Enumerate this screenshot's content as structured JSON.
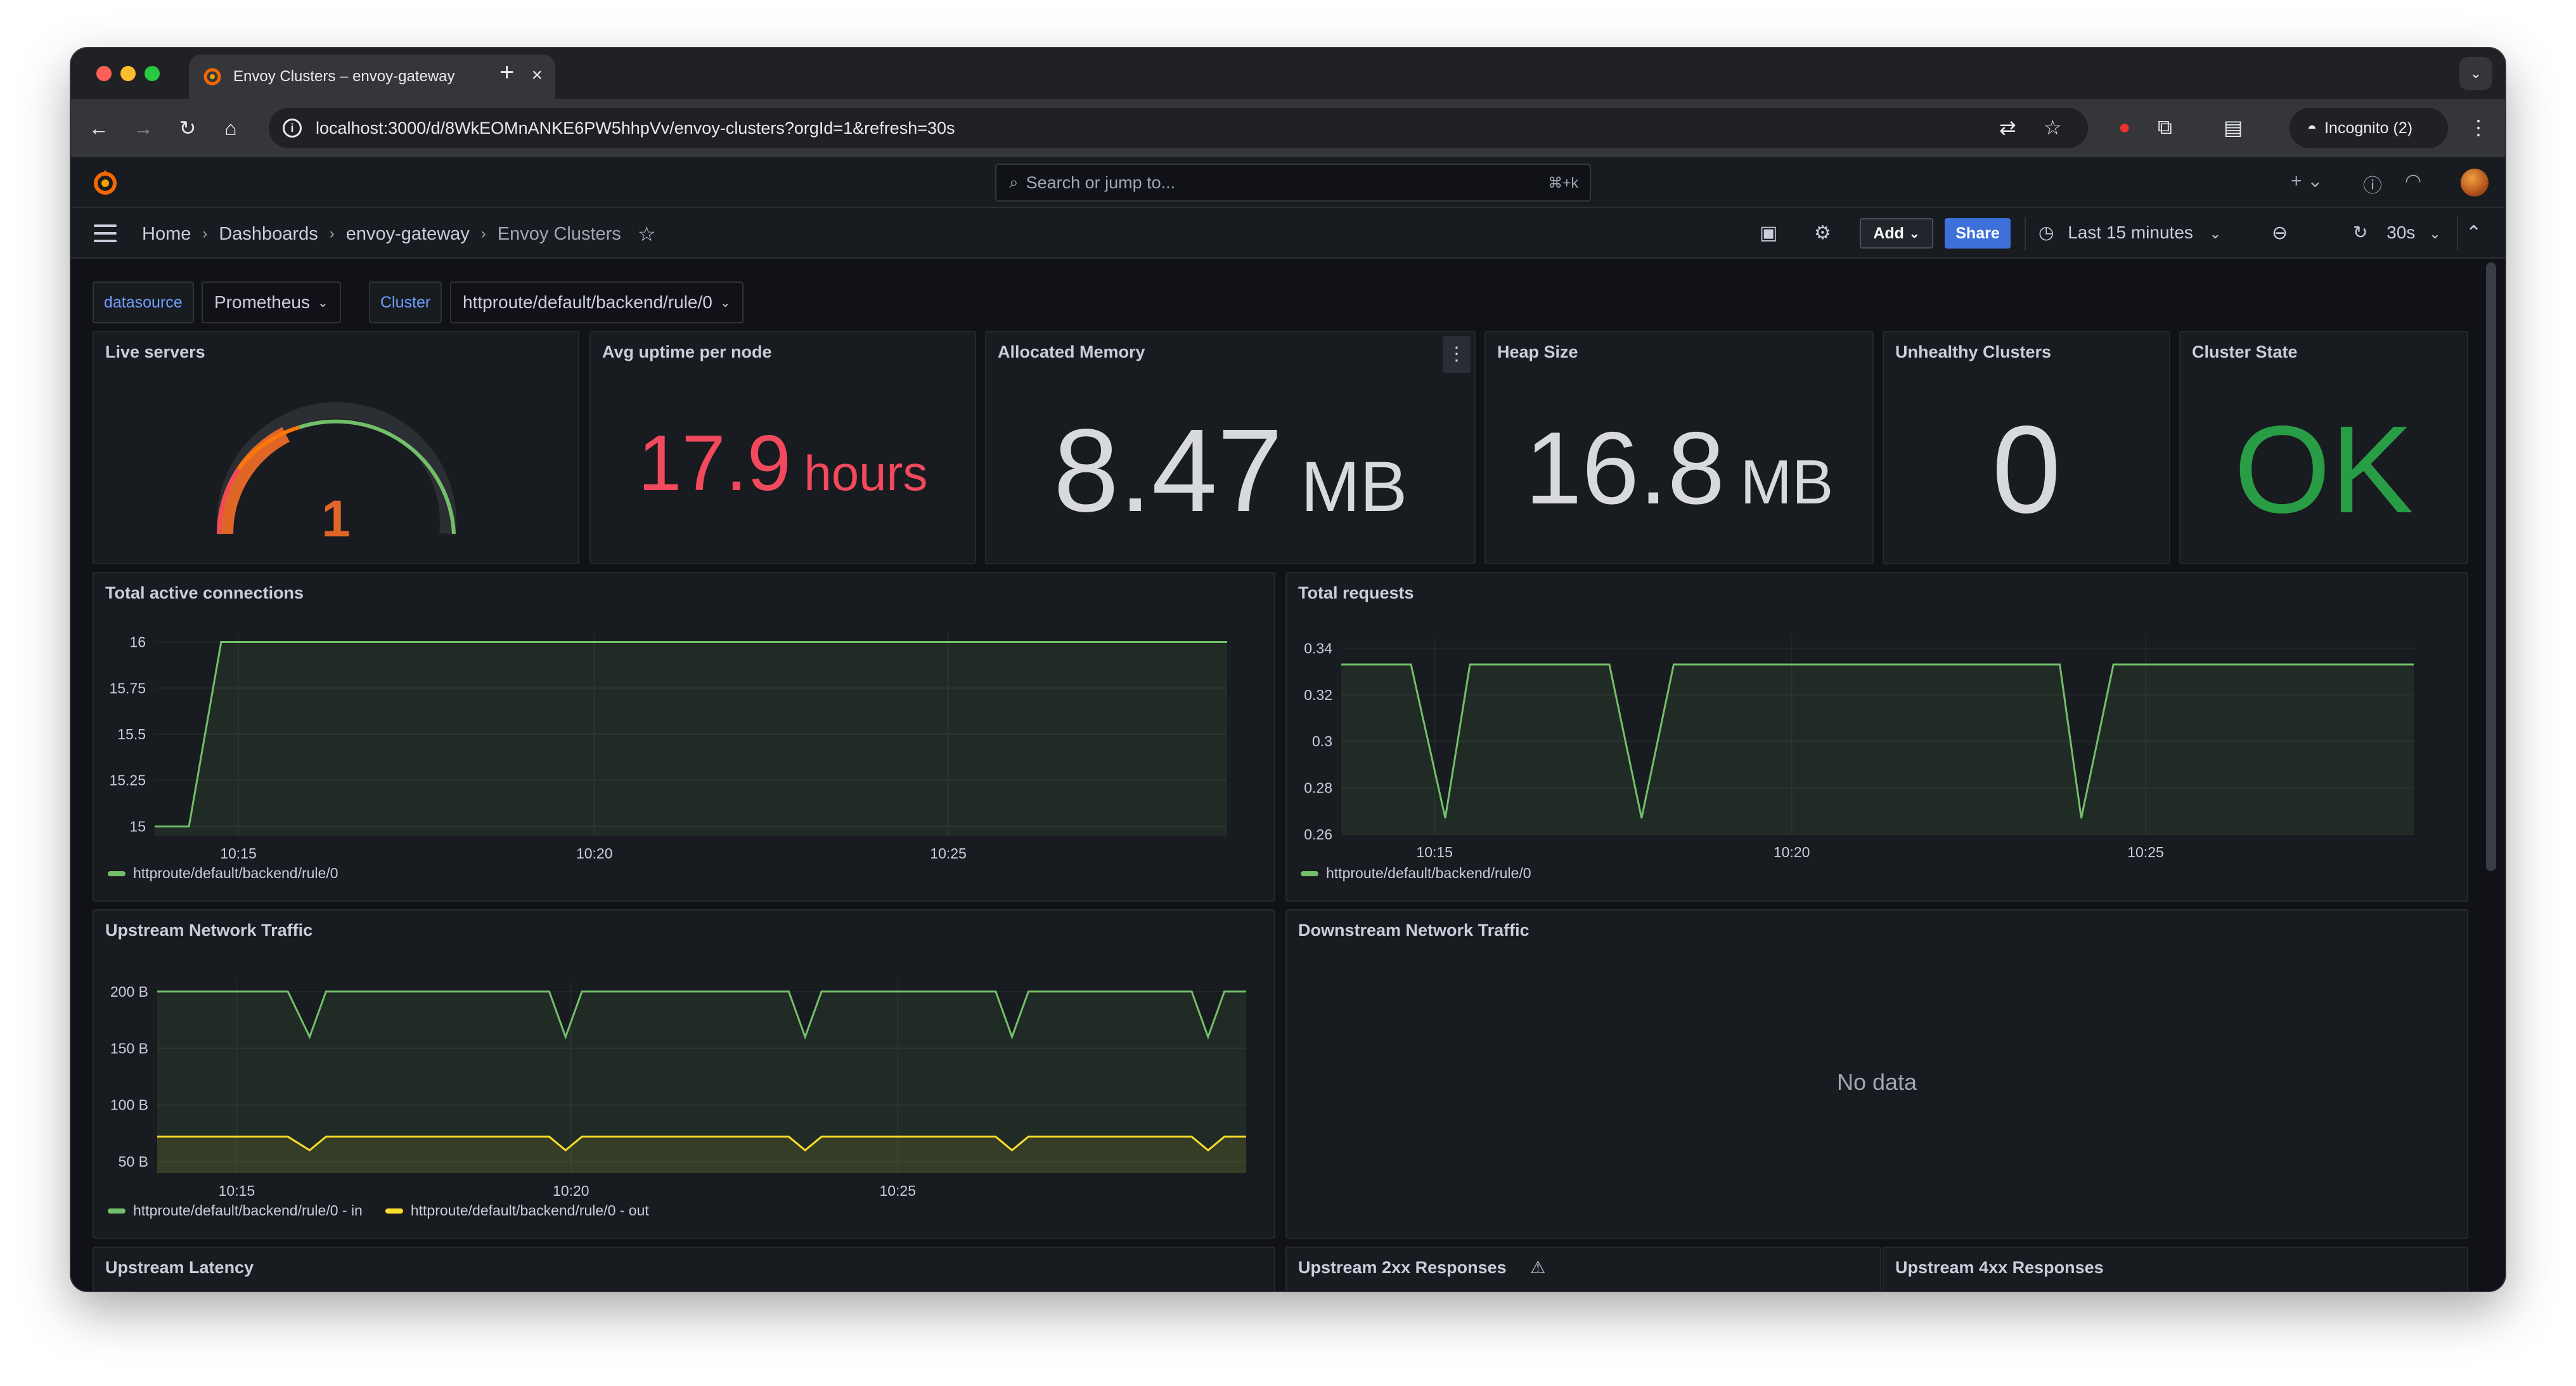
{
  "browser": {
    "tab_title": "Envoy Clusters – envoy-gateway",
    "url": "localhost:3000/d/8WkEOMnANKE6PW5hhpVv/envoy-clusters?orgId=1&refresh=30s",
    "incognito_label": "Incognito (2)"
  },
  "grafana": {
    "search_placeholder": "Search or jump to...",
    "search_shortcut": "⌘+k",
    "breadcrumbs": [
      "Home",
      "Dashboards",
      "envoy-gateway",
      "Envoy Clusters"
    ],
    "add_label": "Add",
    "share_label": "Share",
    "time_range": "Last 15 minutes",
    "refresh_interval": "30s"
  },
  "variables": {
    "datasource_label": "datasource",
    "datasource_value": "Prometheus",
    "cluster_label": "Cluster",
    "cluster_value": "httproute/default/backend/rule/0"
  },
  "stats": {
    "live_servers": {
      "title": "Live servers",
      "value": "1",
      "gauge_fraction": 0.35
    },
    "avg_uptime": {
      "title": "Avg uptime per node",
      "value": "17.9",
      "unit": "hours"
    },
    "allocated_memory": {
      "title": "Allocated Memory",
      "value": "8.47",
      "unit": "MB"
    },
    "heap_size": {
      "title": "Heap Size",
      "value": "16.8",
      "unit": "MB"
    },
    "unhealthy_clusters": {
      "title": "Unhealthy Clusters",
      "value": "0"
    },
    "cluster_state": {
      "title": "Cluster State",
      "value": "OK"
    }
  },
  "panels": {
    "active_connections_title": "Total active connections",
    "total_requests_title": "Total requests",
    "upstream_traffic_title": "Upstream Network Traffic",
    "downstream_traffic_title": "Downstream Network Traffic",
    "no_data": "No data",
    "upstream_latency_title": "Upstream Latency",
    "upstream_2xx_title": "Upstream 2xx Responses",
    "upstream_4xx_title": "Upstream 4xx Responses"
  },
  "colors": {
    "green": "#73bf69",
    "yellow": "#fade2a",
    "red": "#f2495c",
    "orange": "#ff780a",
    "ok_green": "#299c46",
    "share_blue": "#3d71d9"
  },
  "chart_data": [
    {
      "type": "line",
      "title": "Total active connections",
      "x_ticks": [
        "10:15",
        "10:20",
        "10:25"
      ],
      "y_ticks": [
        "15",
        "15.25",
        "15.5",
        "15.75",
        "16"
      ],
      "ylim": [
        14.95,
        16.05
      ],
      "series": [
        {
          "name": "httproute/default/backend/rule/0",
          "color": "#73bf69",
          "x": [
            0.0,
            0.032,
            0.062,
            1.0
          ],
          "values": [
            15,
            15,
            16,
            16
          ]
        }
      ]
    },
    {
      "type": "line",
      "title": "Total requests",
      "x_ticks": [
        "10:15",
        "10:20",
        "10:25"
      ],
      "y_ticks": [
        "0.26",
        "0.28",
        "0.3",
        "0.32",
        "0.34"
      ],
      "ylim": [
        0.26,
        0.345
      ],
      "series": [
        {
          "name": "httproute/default/backend/rule/0",
          "color": "#73bf69",
          "x": [
            0.0,
            0.065,
            0.097,
            0.12,
            0.25,
            0.28,
            0.31,
            0.42,
            0.67,
            0.69,
            0.72,
            1.0
          ],
          "values": [
            0.333,
            0.333,
            0.267,
            0.333,
            0.333,
            0.267,
            0.333,
            0.333,
            0.333,
            0.267,
            0.333,
            0.333
          ]
        }
      ]
    },
    {
      "type": "line",
      "title": "Upstream Network Traffic",
      "x_ticks": [
        "10:15",
        "10:20",
        "10:25"
      ],
      "y_ticks": [
        "50 B",
        "100 B",
        "150 B",
        "200 B"
      ],
      "ylim": [
        40,
        210
      ],
      "series": [
        {
          "name": "httproute/default/backend/rule/0 - in",
          "color": "#73bf69",
          "x": [
            0.0,
            0.12,
            0.14,
            0.155,
            0.36,
            0.375,
            0.39,
            0.58,
            0.595,
            0.61,
            0.77,
            0.785,
            0.8,
            0.95,
            0.965,
            0.98,
            1.0
          ],
          "values": [
            200,
            200,
            160,
            200,
            200,
            160,
            200,
            200,
            160,
            200,
            200,
            160,
            200,
            200,
            160,
            200,
            200
          ]
        },
        {
          "name": "httproute/default/backend/rule/0 - out",
          "color": "#fade2a",
          "x": [
            0.0,
            0.12,
            0.14,
            0.155,
            0.36,
            0.375,
            0.39,
            0.58,
            0.595,
            0.61,
            0.77,
            0.785,
            0.8,
            0.95,
            0.965,
            0.98,
            1.0
          ],
          "values": [
            72,
            72,
            60,
            72,
            72,
            60,
            72,
            72,
            60,
            72,
            72,
            60,
            72,
            72,
            60,
            72,
            72
          ]
        }
      ]
    }
  ]
}
